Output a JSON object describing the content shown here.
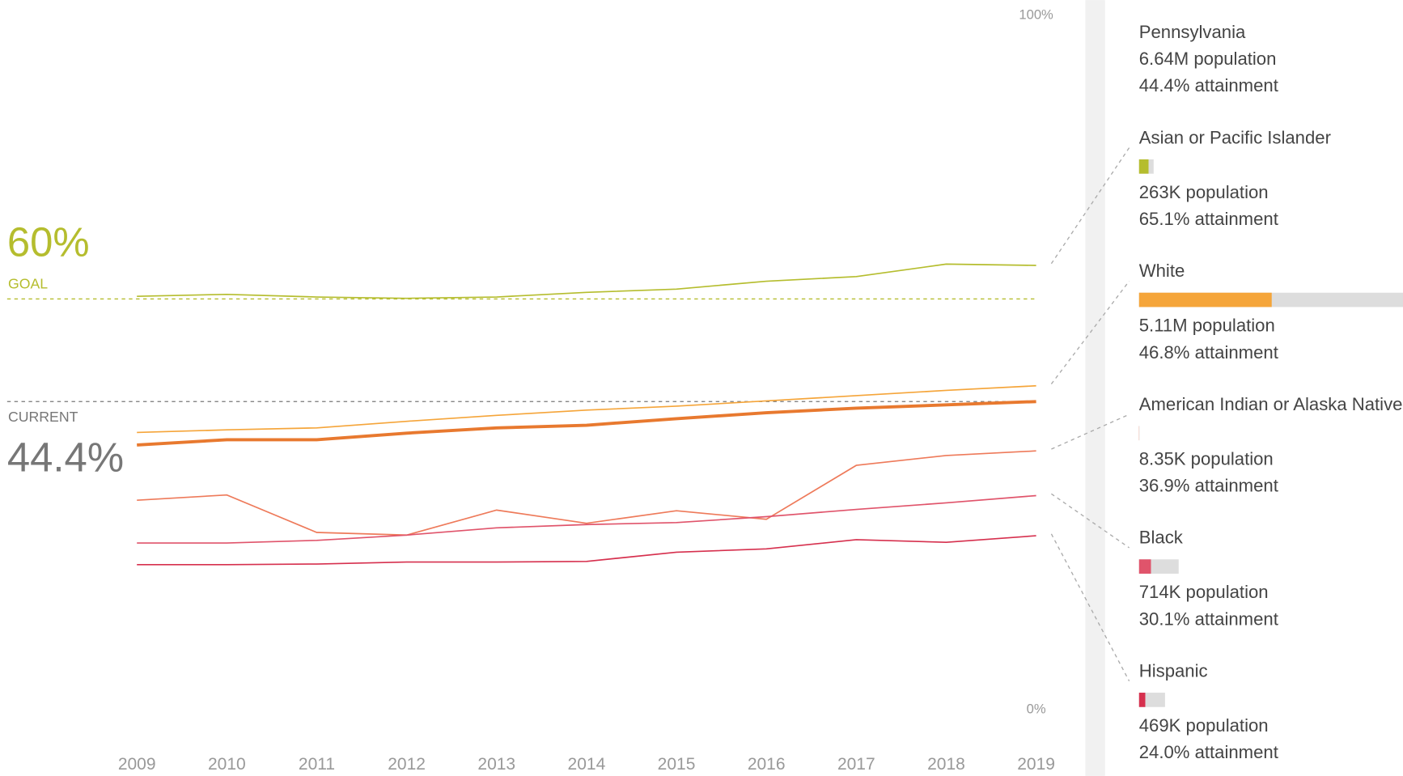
{
  "chart_data": {
    "type": "line",
    "x": [
      2009,
      2010,
      2011,
      2012,
      2013,
      2014,
      2015,
      2016,
      2017,
      2018,
      2019
    ],
    "xlim": [
      2009,
      2019
    ],
    "ylim": [
      0,
      100
    ],
    "yticks": [
      {
        "value": 0,
        "label": "0%"
      },
      {
        "value": 100,
        "label": "100%"
      }
    ],
    "reference_lines": [
      {
        "name": "GOAL",
        "value": 60,
        "label": "60%",
        "color": "#b5bd2e"
      },
      {
        "name": "CURRENT",
        "value": 44.4,
        "label": "44.4%",
        "color": "#777777"
      }
    ],
    "series": [
      {
        "name": "Pennsylvania",
        "color": "#e8792f",
        "width": 3.5,
        "values": [
          37.8,
          38.6,
          38.6,
          39.6,
          40.4,
          40.8,
          41.8,
          42.7,
          43.4,
          43.9,
          44.4
        ],
        "population": 6640000,
        "population_label": "6.64M population",
        "attainment_label": "44.4% attainment"
      },
      {
        "name": "Asian or Pacific Islander",
        "color": "#b5bd2e",
        "width": 1.5,
        "values": [
          60.4,
          60.7,
          60.3,
          60.1,
          60.3,
          61.0,
          61.5,
          62.7,
          63.4,
          65.3,
          65.1
        ],
        "population": 263000,
        "population_label": "263K population",
        "attainment_label": "65.1% attainment"
      },
      {
        "name": "White",
        "color": "#f5a53a",
        "width": 1.5,
        "values": [
          39.7,
          40.1,
          40.4,
          41.4,
          42.3,
          43.1,
          43.7,
          44.5,
          45.3,
          46.1,
          46.8
        ],
        "population": 5110000,
        "population_label": "5.11M population",
        "attainment_label": "46.8% attainment"
      },
      {
        "name": "American Indian or Alaska Native",
        "color": "#ee7a5a",
        "width": 1.5,
        "values": [
          29.4,
          30.2,
          24.5,
          24.1,
          27.9,
          25.9,
          27.8,
          26.5,
          34.7,
          36.2,
          36.9
        ],
        "population": 8350,
        "population_label": "8.35K population",
        "attainment_label": "36.9% attainment"
      },
      {
        "name": "Black",
        "color": "#e0546b",
        "width": 1.5,
        "values": [
          22.9,
          22.9,
          23.3,
          24.1,
          25.2,
          25.7,
          26.0,
          26.9,
          28.0,
          29.0,
          30.1
        ],
        "population": 714000,
        "population_label": "714K population",
        "attainment_label": "30.1% attainment"
      },
      {
        "name": "Hispanic",
        "color": "#d6304e",
        "width": 1.5,
        "values": [
          19.6,
          19.6,
          19.7,
          20.0,
          20.0,
          20.1,
          21.5,
          22.0,
          23.4,
          23.0,
          24.0
        ],
        "population": 469000,
        "population_label": "469K population",
        "attainment_label": "24.0% attainment"
      }
    ]
  }
}
